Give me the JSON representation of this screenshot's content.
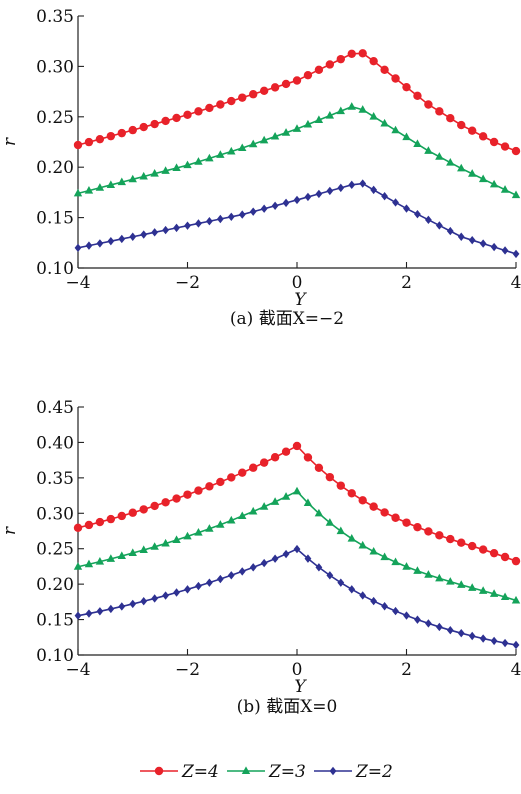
{
  "legend": [
    {
      "series": "Z=4",
      "label": "Z=4",
      "marker": "circle"
    },
    {
      "series": "Z=3",
      "label": "Z=3",
      "marker": "triangle"
    },
    {
      "series": "Z=2",
      "label": "Z=2",
      "marker": "diamond"
    }
  ],
  "colors": {
    "Z=4": "#e8222a",
    "Z=3": "#14a35a",
    "Z=2": "#2e3192",
    "axis": "#222222"
  },
  "chart_data": [
    {
      "type": "line",
      "caption": "(a) 截面X=−2",
      "xlabel": "Y",
      "ylabel": "r",
      "xlim": [
        -4,
        4
      ],
      "ylim": [
        0.1,
        0.35
      ],
      "xticks": [
        -4,
        -2,
        0,
        2,
        4
      ],
      "xtick_labels": [
        "−4",
        "−2",
        "0",
        "2",
        "4"
      ],
      "yticks": [
        0.1,
        0.15,
        0.2,
        0.25,
        0.3,
        0.35
      ],
      "ytick_labels": [
        "0.10",
        "0.15",
        "0.20",
        "0.25",
        "0.30",
        "0.35"
      ],
      "x": [
        -4.0,
        -3.8,
        -3.6,
        -3.4,
        -3.2,
        -3.0,
        -2.8,
        -2.6,
        -2.4,
        -2.2,
        -2.0,
        -1.8,
        -1.6,
        -1.4,
        -1.2,
        -1.0,
        -0.8,
        -0.6,
        -0.4,
        -0.2,
        0.0,
        0.2,
        0.4,
        0.6,
        0.8,
        1.0,
        1.2,
        1.4,
        1.6,
        1.8,
        2.0,
        2.2,
        2.4,
        2.6,
        2.8,
        3.0,
        3.2,
        3.4,
        3.6,
        3.8,
        4.0
      ],
      "series": [
        {
          "name": "Z=4",
          "values": [
            0.222,
            0.2249,
            0.2278,
            0.2308,
            0.2338,
            0.2368,
            0.2398,
            0.2428,
            0.2459,
            0.2489,
            0.252,
            0.2554,
            0.2588,
            0.2622,
            0.2656,
            0.269,
            0.2724,
            0.2758,
            0.2792,
            0.2826,
            0.286,
            0.2913,
            0.2966,
            0.3019,
            0.3072,
            0.3125,
            0.313,
            0.3052,
            0.2966,
            0.288,
            0.2794,
            0.2708,
            0.2622,
            0.2554,
            0.2486,
            0.2418,
            0.2362,
            0.2306,
            0.225,
            0.2205,
            0.216
          ]
        },
        {
          "name": "Z=3",
          "values": [
            0.174,
            0.1768,
            0.1796,
            0.1824,
            0.1852,
            0.188,
            0.1908,
            0.1936,
            0.1964,
            0.1992,
            0.202,
            0.2054,
            0.2088,
            0.2122,
            0.2156,
            0.219,
            0.2228,
            0.2266,
            0.2304,
            0.2342,
            0.238,
            0.2424,
            0.2468,
            0.2512,
            0.2556,
            0.26,
            0.257,
            0.2502,
            0.2434,
            0.2366,
            0.2298,
            0.223,
            0.2162,
            0.2104,
            0.2046,
            0.1988,
            0.1935,
            0.1882,
            0.1829,
            0.1776,
            0.1723
          ]
        },
        {
          "name": "Z=2",
          "values": [
            0.12,
            0.1222,
            0.1244,
            0.1266,
            0.1288,
            0.131,
            0.1332,
            0.1354,
            0.1376,
            0.1398,
            0.142,
            0.1442,
            0.1464,
            0.1486,
            0.1508,
            0.153,
            0.1559,
            0.1588,
            0.1617,
            0.1646,
            0.1675,
            0.1705,
            0.1735,
            0.1765,
            0.1795,
            0.1825,
            0.1838,
            0.1775,
            0.1712,
            0.165,
            0.159,
            0.1534,
            0.1478,
            0.1422,
            0.1366,
            0.131,
            0.1276,
            0.1242,
            0.1208,
            0.1174,
            0.114
          ]
        }
      ]
    },
    {
      "type": "line",
      "caption": "(b) 截面X=0",
      "xlabel": "Y",
      "ylabel": "r",
      "xlim": [
        -4,
        4
      ],
      "ylim": [
        0.1,
        0.45
      ],
      "xticks": [
        -4,
        -2,
        0,
        2,
        4
      ],
      "xtick_labels": [
        "−4",
        "−2",
        "0",
        "2",
        "4"
      ],
      "yticks": [
        0.1,
        0.15,
        0.2,
        0.25,
        0.3,
        0.35,
        0.4,
        0.45
      ],
      "ytick_labels": [
        "0.10",
        "0.15",
        "0.20",
        "0.25",
        "0.30",
        "0.35",
        "0.40",
        "0.45"
      ],
      "x": [
        -4.0,
        -3.8,
        -3.6,
        -3.4,
        -3.2,
        -3.0,
        -2.8,
        -2.6,
        -2.4,
        -2.2,
        -2.0,
        -1.8,
        -1.6,
        -1.4,
        -1.2,
        -1.0,
        -0.8,
        -0.6,
        -0.4,
        -0.2,
        0.0,
        0.2,
        0.4,
        0.6,
        0.8,
        1.0,
        1.2,
        1.4,
        1.6,
        1.8,
        2.0,
        2.2,
        2.4,
        2.6,
        2.8,
        3.0,
        3.2,
        3.4,
        3.6,
        3.8,
        4.0
      ],
      "series": [
        {
          "name": "Z=4",
          "values": [
            0.2795,
            0.2835,
            0.2876,
            0.2918,
            0.2962,
            0.3008,
            0.3055,
            0.3104,
            0.3155,
            0.3208,
            0.3263,
            0.332,
            0.338,
            0.3442,
            0.3506,
            0.3573,
            0.3643,
            0.3715,
            0.3791,
            0.3869,
            0.395,
            0.3788,
            0.3642,
            0.351,
            0.339,
            0.3282,
            0.3183,
            0.3094,
            0.3012,
            0.2937,
            0.2868,
            0.2804,
            0.2744,
            0.2689,
            0.2636,
            0.2585,
            0.2537,
            0.2488,
            0.2437,
            0.2383,
            0.2325
          ]
        },
        {
          "name": "Z=3",
          "values": [
            0.2245,
            0.2281,
            0.2318,
            0.2357,
            0.2397,
            0.2439,
            0.2482,
            0.2527,
            0.2574,
            0.2623,
            0.2674,
            0.2727,
            0.2782,
            0.2839,
            0.2899,
            0.2961,
            0.3025,
            0.3092,
            0.3161,
            0.3234,
            0.331,
            0.3145,
            0.2998,
            0.2866,
            0.2748,
            0.2642,
            0.2546,
            0.246,
            0.2382,
            0.2311,
            0.2246,
            0.2187,
            0.2133,
            0.2082,
            0.2035,
            0.199,
            0.1947,
            0.1905,
            0.1863,
            0.1818,
            0.177
          ]
        },
        {
          "name": "Z=2",
          "values": [
            0.1555,
            0.1585,
            0.1617,
            0.165,
            0.1685,
            0.1721,
            0.1759,
            0.1798,
            0.1839,
            0.1882,
            0.1926,
            0.1973,
            0.2021,
            0.2072,
            0.2125,
            0.218,
            0.2237,
            0.2297,
            0.2359,
            0.2425,
            0.2495,
            0.236,
            0.2237,
            0.2124,
            0.2021,
            0.1927,
            0.184,
            0.1761,
            0.1688,
            0.162,
            0.1557,
            0.1499,
            0.1446,
            0.1396,
            0.135,
            0.1308,
            0.1268,
            0.1232,
            0.1199,
            0.1169,
            0.1142
          ]
        }
      ]
    }
  ]
}
